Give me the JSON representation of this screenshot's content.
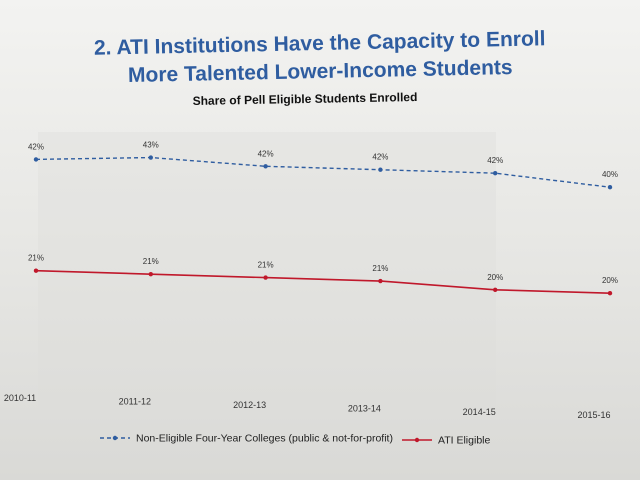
{
  "title": {
    "line1": "2. ATI Institutions Have the Capacity to Enroll",
    "line2": "More Talented Lower-Income Students"
  },
  "chart_data": {
    "type": "line",
    "title": "Share of Pell Eligible Students Enrolled",
    "categories": [
      "2010-11",
      "2011-12",
      "2012-13",
      "2013-14",
      "2014-15",
      "2015-16"
    ],
    "ylim": [
      0,
      50
    ],
    "grid": false,
    "legend_position": "bottom",
    "series": [
      {
        "name": "Non-Eligible Four-Year Colleges (public & not-for-profit)",
        "values": [
          42,
          43,
          42,
          42,
          42,
          40
        ],
        "labels": [
          "42%",
          "43%",
          "42%",
          "42%",
          "42%",
          "40%"
        ],
        "color": "#2f5da0",
        "style": "dashed"
      },
      {
        "name": "ATI Eligible",
        "values": [
          21,
          21,
          21,
          21,
          20,
          20
        ],
        "labels": [
          "21%",
          "21%",
          "21%",
          "21%",
          "20%",
          "20%"
        ],
        "color": "#c0182b",
        "style": "solid"
      }
    ]
  }
}
